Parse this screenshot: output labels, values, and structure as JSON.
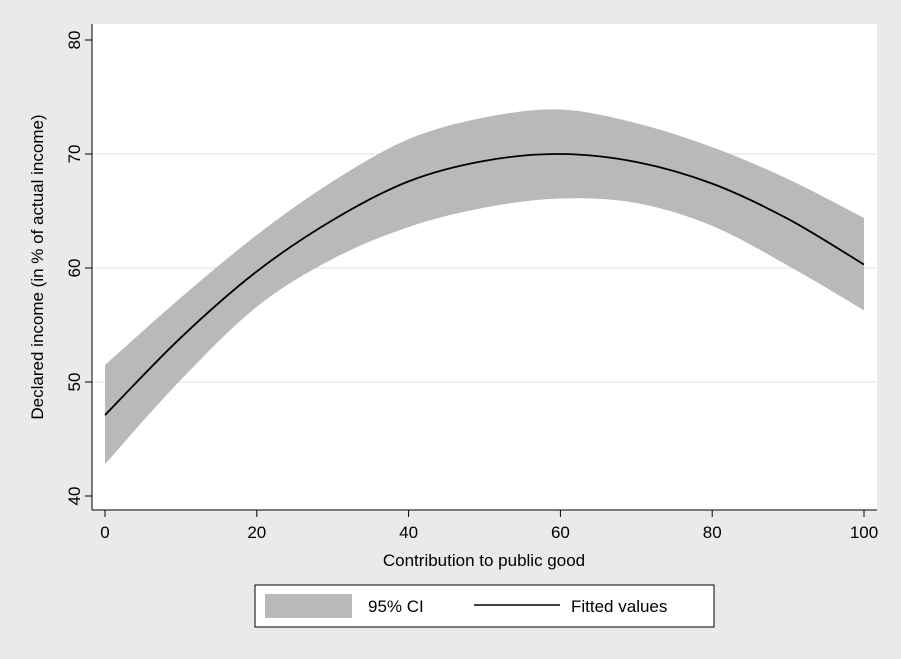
{
  "chart_data": {
    "type": "line",
    "xlabel": "Contribution to public good",
    "ylabel": "Declared income (in % of actual income)",
    "xlim": [
      0,
      100
    ],
    "ylim": [
      40,
      80
    ],
    "xticks": [
      0,
      20,
      40,
      60,
      80,
      100
    ],
    "yticks": [
      40,
      50,
      60,
      70,
      80
    ],
    "grid": "horizontal",
    "legend_position": "bottom",
    "series": [
      {
        "name": "Fitted values",
        "x": [
          0,
          10,
          20,
          30,
          40,
          50,
          60,
          70,
          80,
          90,
          100
        ],
        "values": [
          47.1,
          53.9,
          59.7,
          64.2,
          67.6,
          69.4,
          70.0,
          69.3,
          67.4,
          64.3,
          60.3
        ]
      },
      {
        "name": "95% CI",
        "x": [
          0,
          10,
          20,
          30,
          40,
          50,
          60,
          70,
          80,
          90,
          100
        ],
        "lower": [
          42.8,
          50.2,
          56.6,
          60.8,
          63.6,
          65.3,
          66.1,
          65.7,
          63.7,
          60.2,
          56.3
        ],
        "upper": [
          51.5,
          57.4,
          62.9,
          67.6,
          71.3,
          73.2,
          73.9,
          72.7,
          70.6,
          67.8,
          64.4
        ]
      }
    ],
    "colors": {
      "background": "#eaeaea",
      "plot_background": "#ffffff",
      "ci_fill": "#b9b9b9",
      "line": "#000000",
      "grid": "#e8e8e8"
    }
  }
}
